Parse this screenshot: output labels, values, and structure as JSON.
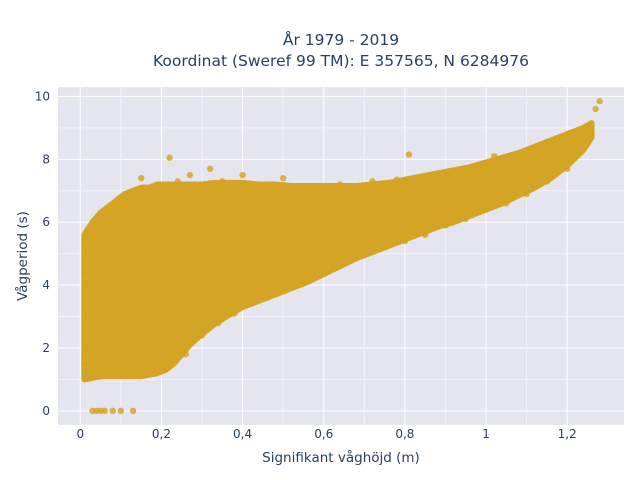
{
  "chart_data": {
    "type": "scatter",
    "title_line1": "År 1979 - 2019",
    "title_line2": "Koordinat (Sweref 99 TM): E 357565, N 6284976",
    "xlabel": "Signifikant våghöjd (m)",
    "ylabel": "Vågperiod (s)",
    "xlim": [
      -0.055,
      1.34
    ],
    "ylim": [
      -0.45,
      10.3
    ],
    "x_ticks": [
      0,
      0.2,
      0.4,
      0.6,
      0.8,
      1.0,
      1.2
    ],
    "x_tick_labels": [
      "0",
      "0,2",
      "0,4",
      "0,6",
      "0,8",
      "1",
      "1,2"
    ],
    "y_ticks": [
      0,
      2,
      4,
      6,
      8,
      10
    ],
    "y_tick_labels": [
      "0",
      "2",
      "4",
      "6",
      "8",
      "10"
    ],
    "grid": true,
    "colors": {
      "marker": "#d4a31e",
      "plot_bg": "#e5e5ef",
      "grid": "#ffffff",
      "text": "#2a3f5f"
    },
    "series": [
      {
        "points": [
          [
            0.03,
            0.0
          ],
          [
            0.04,
            0.0
          ],
          [
            0.05,
            0.0
          ],
          [
            0.06,
            0.0
          ],
          [
            0.08,
            0.0
          ],
          [
            0.1,
            0.0
          ],
          [
            0.13,
            0.0
          ],
          [
            0.01,
            1.5
          ],
          [
            0.01,
            4.4
          ],
          [
            0.05,
            1.1
          ],
          [
            0.05,
            2.6
          ],
          [
            0.05,
            4.0
          ],
          [
            0.05,
            4.8
          ],
          [
            0.08,
            1.2
          ],
          [
            0.08,
            3.3
          ],
          [
            0.08,
            5.5
          ],
          [
            0.09,
            6.2
          ],
          [
            0.12,
            1.2
          ],
          [
            0.12,
            3.6
          ],
          [
            0.12,
            5.6
          ],
          [
            0.12,
            6.5
          ],
          [
            0.15,
            1.2
          ],
          [
            0.15,
            4.0
          ],
          [
            0.15,
            6.0
          ],
          [
            0.15,
            7.4
          ],
          [
            0.18,
            1.3
          ],
          [
            0.18,
            4.2
          ],
          [
            0.18,
            6.3
          ],
          [
            0.19,
            7.1
          ],
          [
            0.22,
            8.05
          ],
          [
            0.22,
            1.4
          ],
          [
            0.22,
            4.3
          ],
          [
            0.22,
            6.6
          ],
          [
            0.24,
            7.3
          ],
          [
            0.26,
            1.8
          ],
          [
            0.26,
            4.4
          ],
          [
            0.26,
            6.8
          ],
          [
            0.27,
            7.5
          ],
          [
            0.3,
            2.4
          ],
          [
            0.3,
            4.5
          ],
          [
            0.3,
            6.7
          ],
          [
            0.32,
            7.7
          ],
          [
            0.34,
            2.8
          ],
          [
            0.34,
            4.6
          ],
          [
            0.34,
            6.8
          ],
          [
            0.35,
            7.3
          ],
          [
            0.38,
            3.1
          ],
          [
            0.38,
            4.8
          ],
          [
            0.38,
            6.6
          ],
          [
            0.4,
            7.5
          ],
          [
            0.42,
            3.4
          ],
          [
            0.42,
            5.0
          ],
          [
            0.42,
            6.6
          ],
          [
            0.44,
            7.1
          ],
          [
            0.46,
            3.6
          ],
          [
            0.46,
            5.1
          ],
          [
            0.46,
            6.7
          ],
          [
            0.5,
            7.4
          ],
          [
            0.5,
            3.8
          ],
          [
            0.5,
            5.3
          ],
          [
            0.5,
            6.7
          ],
          [
            0.55,
            4.1
          ],
          [
            0.55,
            5.5
          ],
          [
            0.55,
            6.8
          ],
          [
            0.58,
            7.0
          ],
          [
            0.6,
            4.4
          ],
          [
            0.6,
            5.6
          ],
          [
            0.6,
            6.9
          ],
          [
            0.64,
            7.2
          ],
          [
            0.65,
            4.7
          ],
          [
            0.65,
            5.8
          ],
          [
            0.65,
            6.9
          ],
          [
            0.7,
            5.0
          ],
          [
            0.7,
            6.0
          ],
          [
            0.7,
            7.0
          ],
          [
            0.72,
            7.3
          ],
          [
            0.75,
            5.2
          ],
          [
            0.75,
            6.2
          ],
          [
            0.75,
            7.1
          ],
          [
            0.78,
            7.35
          ],
          [
            0.8,
            5.4
          ],
          [
            0.8,
            6.3
          ],
          [
            0.8,
            7.2
          ],
          [
            0.81,
            8.15
          ],
          [
            0.85,
            5.6
          ],
          [
            0.85,
            6.5
          ],
          [
            0.85,
            7.3
          ],
          [
            0.9,
            5.9
          ],
          [
            0.9,
            6.7
          ],
          [
            0.9,
            7.5
          ],
          [
            0.95,
            6.1
          ],
          [
            0.95,
            6.9
          ],
          [
            0.95,
            7.6
          ],
          [
            1.0,
            6.4
          ],
          [
            1.0,
            7.2
          ],
          [
            1.0,
            7.9
          ],
          [
            1.02,
            8.1
          ],
          [
            1.05,
            6.6
          ],
          [
            1.05,
            7.3
          ],
          [
            1.05,
            7.8
          ],
          [
            1.1,
            6.9
          ],
          [
            1.1,
            7.5
          ],
          [
            1.1,
            8.1
          ],
          [
            1.15,
            7.3
          ],
          [
            1.15,
            7.8
          ],
          [
            1.15,
            8.4
          ],
          [
            1.2,
            7.7
          ],
          [
            1.2,
            8.2
          ],
          [
            1.2,
            8.8
          ],
          [
            1.25,
            8.5
          ],
          [
            1.25,
            9.0
          ],
          [
            1.27,
            9.6
          ],
          [
            1.28,
            9.85
          ]
        ]
      }
    ],
    "bands": [
      [
        0.01,
        1.0,
        5.6
      ],
      [
        0.03,
        1.05,
        6.0
      ],
      [
        0.05,
        1.1,
        6.3
      ],
      [
        0.07,
        1.1,
        6.5
      ],
      [
        0.09,
        1.1,
        6.7
      ],
      [
        0.11,
        1.1,
        6.9
      ],
      [
        0.13,
        1.1,
        7.0
      ],
      [
        0.15,
        1.1,
        7.1
      ],
      [
        0.17,
        1.15,
        7.1
      ],
      [
        0.19,
        1.2,
        7.2
      ],
      [
        0.21,
        1.3,
        7.2
      ],
      [
        0.23,
        1.5,
        7.2
      ],
      [
        0.25,
        1.8,
        7.2
      ],
      [
        0.27,
        2.1,
        7.2
      ],
      [
        0.3,
        2.45,
        7.2
      ],
      [
        0.33,
        2.75,
        7.25
      ],
      [
        0.36,
        3.0,
        7.25
      ],
      [
        0.4,
        3.3,
        7.25
      ],
      [
        0.44,
        3.5,
        7.2
      ],
      [
        0.48,
        3.7,
        7.2
      ],
      [
        0.52,
        3.9,
        7.15
      ],
      [
        0.56,
        4.1,
        7.15
      ],
      [
        0.6,
        4.35,
        7.15
      ],
      [
        0.64,
        4.6,
        7.15
      ],
      [
        0.68,
        4.85,
        7.15
      ],
      [
        0.72,
        5.05,
        7.2
      ],
      [
        0.76,
        5.25,
        7.25
      ],
      [
        0.8,
        5.45,
        7.35
      ],
      [
        0.84,
        5.65,
        7.45
      ],
      [
        0.88,
        5.85,
        7.55
      ],
      [
        0.92,
        6.0,
        7.65
      ],
      [
        0.96,
        6.2,
        7.75
      ],
      [
        1.0,
        6.4,
        7.9
      ],
      [
        1.04,
        6.6,
        8.05
      ],
      [
        1.08,
        6.85,
        8.2
      ],
      [
        1.12,
        7.1,
        8.4
      ],
      [
        1.16,
        7.4,
        8.6
      ],
      [
        1.2,
        7.8,
        8.8
      ],
      [
        1.24,
        8.3,
        9.0
      ],
      [
        1.26,
        8.7,
        9.15
      ]
    ]
  }
}
